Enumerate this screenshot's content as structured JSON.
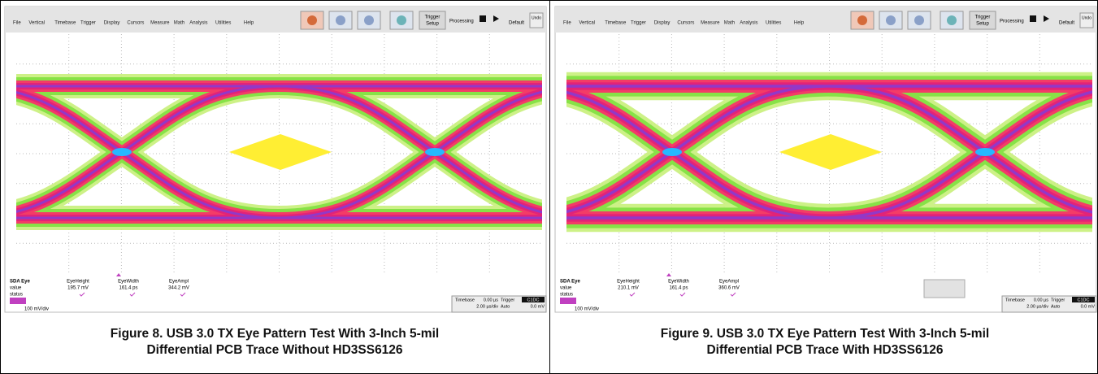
{
  "figures": [
    {
      "menu": [
        "File",
        "Vertical",
        "Timebase",
        "Trigger",
        "Display",
        "Cursors",
        "Measure",
        "Math",
        "Analysis",
        "Utilities",
        "Help"
      ],
      "toolbar": {
        "trigger_setup": [
          "Trigger",
          "Setup"
        ],
        "processing": "Processing",
        "default": "Default",
        "undo": "Undo"
      },
      "measurements": {
        "name": "SDA Eye",
        "rows": [
          "value",
          "status"
        ],
        "params": [
          {
            "label": "EyeHeight",
            "value": "195.7 mV"
          },
          {
            "label": "EyeWidth",
            "value": "161.4 ps"
          },
          {
            "label": "EyeAmpl",
            "value": "344.2 mV"
          }
        ]
      },
      "channel": {
        "scale": "100 mV/div"
      },
      "status_bar": {
        "timebase": "Timebase",
        "delay": "0.00 µs",
        "trigger": "Trigger",
        "source": "C1DC",
        "rate": "2.00 µs/div",
        "mode": "Auto",
        "level": "0.0 mV"
      },
      "caption": [
        "Figure 8. USB 3.0 TX Eye Pattern Test With 3-Inch 5-mil",
        "Differential PCB Trace Without HD3SS6126"
      ]
    },
    {
      "menu": [
        "File",
        "Vertical",
        "Timebase",
        "Trigger",
        "Display",
        "Cursors",
        "Measure",
        "Math",
        "Analysis",
        "Utilities",
        "Help"
      ],
      "toolbar": {
        "trigger_setup": [
          "Trigger",
          "Setup"
        ],
        "processing": "Processing",
        "default": "Default",
        "undo": "Undo"
      },
      "measurements": {
        "name": "SDA Eye",
        "rows": [
          "value",
          "status"
        ],
        "params": [
          {
            "label": "EyeHeight",
            "value": "210.1 mV"
          },
          {
            "label": "EyeWidth",
            "value": "161.4 ps"
          },
          {
            "label": "EyeAmpl",
            "value": "360.6 mV"
          }
        ]
      },
      "channel": {
        "scale": "100 mV/div"
      },
      "status_bar": {
        "timebase": "Timebase",
        "delay": "0.00 µs",
        "trigger": "Trigger",
        "source": "C1DC",
        "rate": "2.00 µs/div",
        "mode": "Auto",
        "level": "0.0 mV"
      },
      "caption": [
        "Figure 9. USB 3.0 TX Eye Pattern Test With 3-Inch 5-mil",
        "Differential PCB Trace With HD3SS6126"
      ]
    }
  ]
}
